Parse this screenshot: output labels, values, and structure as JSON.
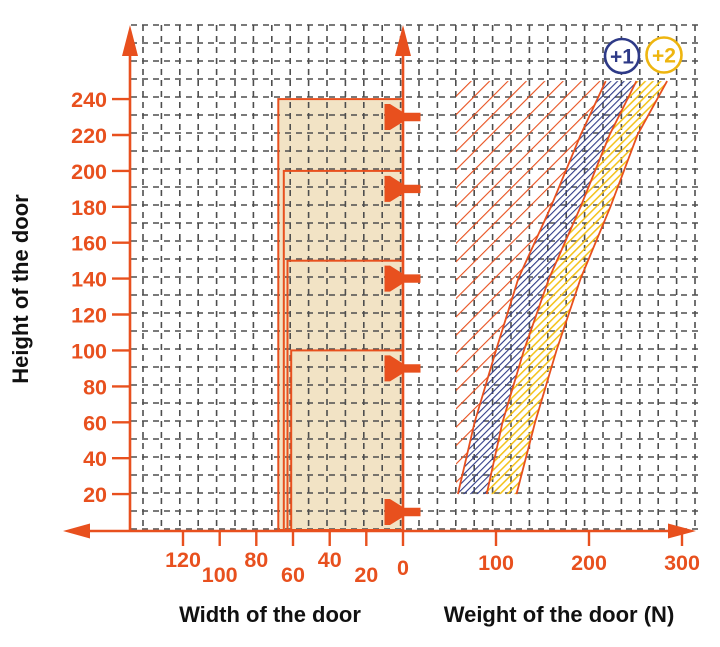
{
  "chart_data": {
    "type": "area",
    "description": "Door fitting application chart: stepped max door-width region (left, mirrored axis) and weight application bands for +1 and +2 fittings (right)",
    "badges": [
      {
        "label": "+1",
        "color": "#2e3a87"
      },
      {
        "label": "+2",
        "color": "#eeb50f"
      }
    ],
    "y_axis": {
      "label": "Height of the door",
      "ticks": [
        240,
        220,
        200,
        180,
        160,
        140,
        120,
        100,
        80,
        60,
        40,
        20
      ],
      "range": [
        0,
        260
      ]
    },
    "x_axis_width": {
      "label": "Width of the door",
      "ticks": [
        120,
        100,
        80,
        60,
        40,
        20,
        0
      ],
      "direction": "increases right-to-left from shared zero axis"
    },
    "x_axis_weight": {
      "label": "Weight of the door (N)",
      "ticks": [
        100,
        200,
        300
      ],
      "range": [
        0,
        310
      ]
    },
    "door_width_steps": [
      {
        "height_from": 200,
        "height_to": 240,
        "max_width": 68
      },
      {
        "height_from": 150,
        "height_to": 200,
        "max_width": 65
      },
      {
        "height_from": 100,
        "height_to": 150,
        "max_width": 63
      },
      {
        "height_from": 0,
        "height_to": 100,
        "max_width": 61
      }
    ],
    "marker_heights": [
      230,
      190,
      140,
      90,
      10
    ],
    "weight_bands": {
      "heights": [
        250,
        220,
        180,
        140,
        100,
        60,
        20
      ],
      "curve_left_weights": [
        218,
        191,
        159,
        124,
        100,
        77,
        59
      ],
      "curve_mid_weights": [
        251,
        222,
        191,
        157,
        130,
        107,
        90
      ],
      "curve_right_weights": [
        284,
        252,
        223,
        191,
        165,
        142,
        122
      ],
      "hatch_zone_min_weight": 57,
      "band_plus1": "blue hatched band between left and mid curves",
      "band_plus2": "yellow hatched band between mid and right curves",
      "red_zone": "red hatched area left of the +1 band"
    },
    "colors": {
      "accent": "#e8501e",
      "beige": "#f2e3c5",
      "navy": "#2e3a87",
      "yellow": "#eeb50f",
      "yellow_hatch": "#f4c31c",
      "grid": "#4e4e4e",
      "text": "#111111"
    },
    "grid": {
      "visible": true,
      "style": "dashed",
      "spacing_units": 10
    }
  }
}
